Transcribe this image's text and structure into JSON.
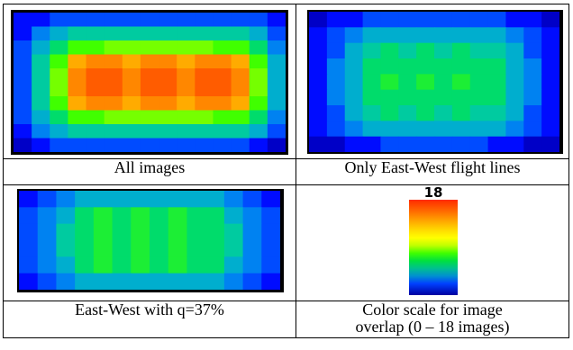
{
  "panels": [
    {
      "caption": "All images",
      "cols": 15,
      "rows": 10,
      "grid": [
        [
          2,
          2,
          3,
          3,
          3,
          3,
          3,
          3,
          3,
          3,
          3,
          3,
          3,
          3,
          2
        ],
        [
          2,
          4,
          5,
          6,
          6,
          6,
          6,
          6,
          6,
          6,
          6,
          6,
          6,
          5,
          3
        ],
        [
          3,
          5,
          7,
          9,
          9,
          10,
          10,
          10,
          10,
          10,
          10,
          9,
          9,
          7,
          4
        ],
        [
          3,
          6,
          9,
          15,
          16,
          16,
          15,
          16,
          16,
          15,
          16,
          16,
          15,
          9,
          5
        ],
        [
          3,
          6,
          10,
          16,
          17,
          17,
          16,
          17,
          17,
          16,
          17,
          17,
          16,
          10,
          5
        ],
        [
          3,
          6,
          10,
          16,
          17,
          17,
          16,
          17,
          17,
          16,
          17,
          17,
          16,
          10,
          5
        ],
        [
          3,
          6,
          9,
          15,
          16,
          16,
          15,
          16,
          16,
          15,
          16,
          16,
          15,
          9,
          5
        ],
        [
          3,
          5,
          7,
          9,
          9,
          10,
          10,
          10,
          10,
          10,
          10,
          9,
          9,
          7,
          4
        ],
        [
          2,
          4,
          5,
          6,
          6,
          6,
          6,
          6,
          6,
          6,
          6,
          6,
          6,
          5,
          3
        ],
        [
          1,
          2,
          3,
          3,
          3,
          3,
          3,
          3,
          3,
          3,
          3,
          3,
          3,
          2,
          1
        ]
      ]
    },
    {
      "caption": "Only East-West flight lines",
      "cols": 14,
      "rows": 9,
      "grid": [
        [
          1,
          2,
          2,
          3,
          3,
          3,
          3,
          3,
          3,
          3,
          3,
          2,
          2,
          1
        ],
        [
          2,
          3,
          4,
          5,
          5,
          5,
          5,
          5,
          5,
          5,
          5,
          4,
          3,
          2
        ],
        [
          2,
          3,
          5,
          6,
          7,
          6,
          7,
          6,
          7,
          6,
          6,
          5,
          3,
          2
        ],
        [
          2,
          4,
          5,
          7,
          7,
          7,
          7,
          7,
          7,
          7,
          7,
          5,
          4,
          2
        ],
        [
          2,
          4,
          5,
          7,
          8,
          7,
          8,
          7,
          8,
          7,
          7,
          5,
          4,
          2
        ],
        [
          2,
          4,
          5,
          7,
          7,
          7,
          7,
          7,
          7,
          7,
          7,
          5,
          4,
          2
        ],
        [
          2,
          3,
          5,
          6,
          7,
          6,
          7,
          6,
          7,
          6,
          6,
          5,
          3,
          2
        ],
        [
          2,
          3,
          4,
          5,
          5,
          5,
          5,
          5,
          5,
          5,
          5,
          4,
          3,
          2
        ],
        [
          1,
          1,
          2,
          2,
          3,
          3,
          3,
          3,
          3,
          3,
          2,
          2,
          1,
          1
        ]
      ]
    },
    {
      "caption": "East-West with q=37%",
      "cols": 14,
      "rows": 6,
      "grid": [
        [
          2,
          3,
          4,
          5,
          5,
          5,
          5,
          5,
          5,
          5,
          5,
          4,
          3,
          2
        ],
        [
          3,
          4,
          5,
          7,
          8,
          7,
          8,
          7,
          8,
          7,
          7,
          5,
          4,
          3
        ],
        [
          3,
          4,
          6,
          7,
          8,
          7,
          8,
          7,
          8,
          7,
          7,
          6,
          4,
          3
        ],
        [
          3,
          4,
          6,
          7,
          8,
          7,
          8,
          7,
          8,
          7,
          7,
          6,
          4,
          3
        ],
        [
          3,
          4,
          5,
          7,
          8,
          7,
          8,
          7,
          8,
          7,
          7,
          5,
          4,
          3
        ],
        [
          2,
          3,
          4,
          5,
          5,
          5,
          5,
          5,
          5,
          5,
          5,
          4,
          3,
          2
        ]
      ]
    }
  ],
  "scale": {
    "max_label": "18",
    "max": 18,
    "min": 0,
    "caption_line1": "Color scale for image",
    "caption_line2": "overlap (0 – 18 images)"
  },
  "colors": {
    "stops": [
      "#000080",
      "#0000ff",
      "#0070ff",
      "#00c0c0",
      "#00e060",
      "#40ff00",
      "#a0ff00",
      "#ffff00",
      "#ffc000",
      "#ff8000",
      "#ff3000"
    ]
  }
}
